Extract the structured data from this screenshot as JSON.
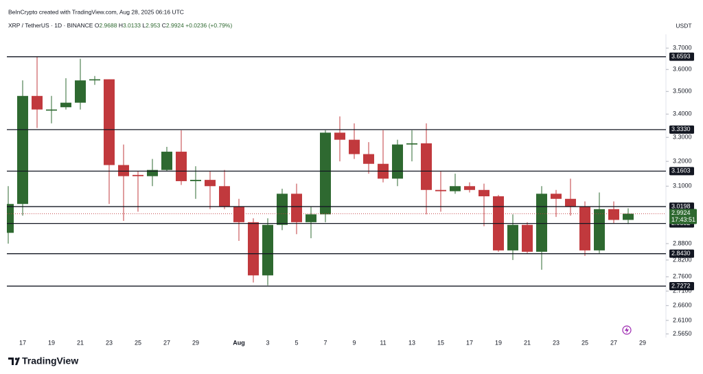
{
  "chart_data": {
    "type": "candlestick",
    "attribution": "BeInCrypto created with TradingView.com, Aug 28, 2025 06:16 UTC",
    "symbol": "XRP / TetherUS · 1D · BINANCE",
    "legend_labels": {
      "open": "O",
      "high": "H",
      "low": "L",
      "close": "C"
    },
    "change": "+0.0236",
    "change_pct": "(+0.79%)",
    "currency": "USDT",
    "countdown": "17:43:51",
    "brand": "TradingView",
    "log_scale": true,
    "grid": false,
    "up_color": "#2e6930",
    "down_color": "#c1393d",
    "categories": [
      null,
      "17",
      null,
      "19",
      null,
      "21",
      null,
      "23",
      null,
      "25",
      null,
      "27",
      null,
      "29",
      null,
      null,
      "Aug",
      null,
      "3",
      null,
      "5",
      null,
      "7",
      null,
      "9",
      null,
      "11",
      null,
      "13",
      null,
      "15",
      null,
      "17",
      null,
      "19",
      null,
      "21",
      null,
      "23",
      null,
      "25",
      null,
      "27",
      null,
      "29"
    ],
    "open": [
      2.92,
      3.03,
      3.48,
      3.415,
      3.43,
      3.45,
      3.55,
      3.555,
      3.185,
      3.145,
      3.14,
      3.165,
      3.24,
      3.12,
      3.125,
      3.1,
      3.02,
      2.96,
      2.765,
      2.95,
      3.07,
      2.96,
      2.99,
      3.32,
      3.29,
      3.23,
      3.19,
      3.13,
      3.27,
      3.275,
      3.085,
      3.08,
      3.1,
      3.085,
      3.06,
      2.855,
      2.95,
      2.85,
      3.07,
      3.05,
      3.02,
      2.855,
      3.01,
      2.9688,
      null
    ],
    "high": [
      3.1,
      3.55,
      3.659,
      3.48,
      3.56,
      3.65,
      3.57,
      3.555,
      3.27,
      3.16,
      3.21,
      3.26,
      3.33,
      3.18,
      3.16,
      3.165,
      3.05,
      2.975,
      2.975,
      3.09,
      3.11,
      3.02,
      3.33,
      3.39,
      3.36,
      3.28,
      3.33,
      3.29,
      3.33,
      3.36,
      3.16,
      3.15,
      3.115,
      3.11,
      3.065,
      2.99,
      2.96,
      3.1,
      3.085,
      3.13,
      3.04,
      3.075,
      3.04,
      3.0133,
      null
    ],
    "low": [
      2.88,
      2.985,
      3.34,
      3.36,
      3.42,
      3.42,
      3.53,
      3.03,
      2.965,
      3.0,
      3.1,
      3.16,
      3.105,
      3.05,
      3.01,
      3.01,
      2.89,
      2.74,
      2.73,
      2.93,
      2.915,
      2.9,
      2.96,
      3.2,
      3.21,
      3.15,
      3.115,
      3.1,
      3.2,
      2.99,
      3.0,
      3.07,
      3.075,
      2.945,
      2.85,
      2.82,
      2.845,
      2.785,
      2.98,
      2.985,
      2.835,
      2.845,
      2.955,
      2.953,
      null
    ],
    "close": [
      3.03,
      3.48,
      3.42,
      3.42,
      3.45,
      3.55,
      3.555,
      3.185,
      3.14,
      3.14,
      3.165,
      3.24,
      3.12,
      3.125,
      3.1,
      3.02,
      2.96,
      2.765,
      2.95,
      3.07,
      2.96,
      2.99,
      3.32,
      3.29,
      3.23,
      3.19,
      3.13,
      3.27,
      3.275,
      3.085,
      3.08,
      3.1,
      3.085,
      3.06,
      2.855,
      2.95,
      2.85,
      3.07,
      3.05,
      3.02,
      2.855,
      3.01,
      2.9688,
      2.9924,
      null
    ],
    "levels": [
      3.6593,
      {
        "value": 3.333,
        "label": "3.3330"
      },
      3.1603,
      3.0198,
      2.9552,
      {
        "value": 2.843,
        "label": "2.8430"
      },
      2.7272
    ],
    "ylim": [
      2.553,
      3.766
    ],
    "yticks": [
      {
        "value": 3.7,
        "label": "3.7000"
      },
      {
        "value": 3.6,
        "label": "3.6000"
      },
      {
        "value": 3.5,
        "label": "3.5000"
      },
      {
        "value": 3.4,
        "label": "3.4000"
      },
      {
        "value": 3.3,
        "label": "3.3000"
      },
      {
        "value": 3.2,
        "label": "3.2000"
      },
      {
        "value": 3.1,
        "label": "3.1000"
      },
      {
        "value": 2.88,
        "label": "2.8800"
      },
      {
        "value": 2.82,
        "label": "2.8200"
      },
      {
        "value": 2.76,
        "label": "2.7600"
      },
      {
        "value": 2.71,
        "label": "2.7100"
      },
      {
        "value": 2.66,
        "label": "2.6600"
      },
      {
        "value": 2.61,
        "label": "2.6100"
      },
      {
        "value": 2.565,
        "label": "2.5650"
      }
    ]
  }
}
